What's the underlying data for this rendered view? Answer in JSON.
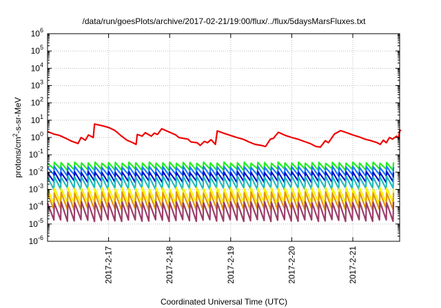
{
  "chart_data": {
    "type": "line",
    "title": "/data/run/goesPlots/archive/2017-02-21/19:00/flux/../flux/5daysMarsFluxes.txt",
    "xlabel": "Coordinated Universal Time (UTC)",
    "ylabel_parts": {
      "base": "protons/cm",
      "sup": "2",
      "rest": "-s-sr-MeV"
    },
    "yscale": "log",
    "ylim": [
      1e-06,
      1000000.0
    ],
    "xlim": [
      "2017-02-16 00:00",
      "2017-02-21 19:00"
    ],
    "x_ticks": [
      {
        "label": "2017-2-17",
        "day": 1
      },
      {
        "label": "2017-2-18",
        "day": 2
      },
      {
        "label": "2017-2-19",
        "day": 3
      },
      {
        "label": "2017-2-20",
        "day": 4
      },
      {
        "label": "2017-2-21",
        "day": 5
      }
    ],
    "y_ticks": [
      {
        "base": "10",
        "exp": "-6",
        "value": 1e-06
      },
      {
        "base": "10",
        "exp": "-5",
        "value": 1e-05
      },
      {
        "base": "10",
        "exp": "-4",
        "value": 0.0001
      },
      {
        "base": "10",
        "exp": "-3",
        "value": 0.001
      },
      {
        "base": "10",
        "exp": "-2",
        "value": 0.01
      },
      {
        "base": "10",
        "exp": "-1",
        "value": 0.1
      },
      {
        "base": "10",
        "exp": "0",
        "value": 1
      },
      {
        "base": "10",
        "exp": "1",
        "value": 10
      },
      {
        "base": "10",
        "exp": "2",
        "value": 100
      },
      {
        "base": "10",
        "exp": "3",
        "value": 1000
      },
      {
        "base": "10",
        "exp": "4",
        "value": 10000
      },
      {
        "base": "10",
        "exp": "5",
        "value": 100000
      },
      {
        "base": "10",
        "exp": "6",
        "value": 1000000
      }
    ],
    "grid": true,
    "sawtooth_cycles_per_day": 9,
    "series": [
      {
        "color": "#ee0000",
        "kind": "profile",
        "points": [
          [
            0.0,
            2.2
          ],
          [
            0.1,
            1.6
          ],
          [
            0.2,
            1.3
          ],
          [
            0.3,
            0.9
          ],
          [
            0.4,
            0.6
          ],
          [
            0.5,
            0.45
          ],
          [
            0.55,
            1.0
          ],
          [
            0.62,
            0.7
          ],
          [
            0.67,
            1.4
          ],
          [
            0.75,
            1.0
          ],
          [
            0.77,
            6.0
          ],
          [
            0.9,
            4.8
          ],
          [
            1.0,
            3.8
          ],
          [
            1.1,
            2.6
          ],
          [
            1.2,
            1.3
          ],
          [
            1.3,
            0.7
          ],
          [
            1.4,
            0.5
          ],
          [
            1.45,
            0.4
          ],
          [
            1.47,
            1.5
          ],
          [
            1.55,
            1.2
          ],
          [
            1.6,
            1.9
          ],
          [
            1.7,
            1.2
          ],
          [
            1.75,
            1.8
          ],
          [
            1.8,
            1.5
          ],
          [
            1.87,
            3.2
          ],
          [
            1.95,
            2.4
          ],
          [
            2.0,
            2.0
          ],
          [
            2.1,
            1.4
          ],
          [
            2.15,
            1.0
          ],
          [
            2.22,
            0.9
          ],
          [
            2.3,
            0.8
          ],
          [
            2.35,
            0.55
          ],
          [
            2.45,
            0.5
          ],
          [
            2.5,
            0.35
          ],
          [
            2.57,
            0.6
          ],
          [
            2.62,
            0.5
          ],
          [
            2.68,
            0.75
          ],
          [
            2.75,
            0.4
          ],
          [
            2.78,
            2.4
          ],
          [
            2.9,
            1.7
          ],
          [
            3.0,
            1.3
          ],
          [
            3.1,
            1.0
          ],
          [
            3.2,
            0.8
          ],
          [
            3.3,
            0.55
          ],
          [
            3.4,
            0.4
          ],
          [
            3.5,
            0.35
          ],
          [
            3.57,
            0.3
          ],
          [
            3.65,
            0.8
          ],
          [
            3.7,
            0.9
          ],
          [
            3.78,
            2.0
          ],
          [
            3.9,
            1.3
          ],
          [
            4.0,
            1.0
          ],
          [
            4.1,
            0.8
          ],
          [
            4.2,
            0.6
          ],
          [
            4.3,
            0.45
          ],
          [
            4.4,
            0.3
          ],
          [
            4.47,
            0.28
          ],
          [
            4.55,
            0.65
          ],
          [
            4.6,
            0.5
          ],
          [
            4.7,
            1.6
          ],
          [
            4.8,
            2.5
          ],
          [
            4.9,
            1.9
          ],
          [
            5.0,
            1.4
          ],
          [
            5.1,
            1.1
          ],
          [
            5.2,
            0.8
          ],
          [
            5.3,
            0.65
          ],
          [
            5.4,
            0.5
          ],
          [
            5.45,
            0.4
          ],
          [
            5.5,
            0.7
          ],
          [
            5.55,
            0.5
          ],
          [
            5.6,
            1.0
          ],
          [
            5.65,
            0.8
          ],
          [
            5.72,
            1.2
          ],
          [
            5.75,
            0.9
          ],
          [
            5.77,
            2.7
          ],
          [
            5.79,
            2.4
          ]
        ]
      },
      {
        "color": "#22ee22",
        "kind": "sawtooth",
        "high": 0.035,
        "low": 0.014
      },
      {
        "color": "#1e7bff",
        "kind": "sawtooth",
        "high": 0.02,
        "low": 0.0065
      },
      {
        "color": "#0011cc",
        "kind": "sawtooth",
        "high": 0.01,
        "low": 0.0028
      },
      {
        "color": "#22bbbb",
        "kind": "sawtooth",
        "high": 0.0055,
        "low": 0.0011
      },
      {
        "color": "#f4f400",
        "kind": "sawtooth",
        "high": 0.0012,
        "low": 0.00016
      },
      {
        "color": "#e69500",
        "kind": "sawtooth",
        "high": 0.00065,
        "low": 7e-05
      },
      {
        "color": "#9b3d6a",
        "kind": "sawtooth",
        "high": 0.00018,
        "low": 1.6e-05
      }
    ]
  }
}
